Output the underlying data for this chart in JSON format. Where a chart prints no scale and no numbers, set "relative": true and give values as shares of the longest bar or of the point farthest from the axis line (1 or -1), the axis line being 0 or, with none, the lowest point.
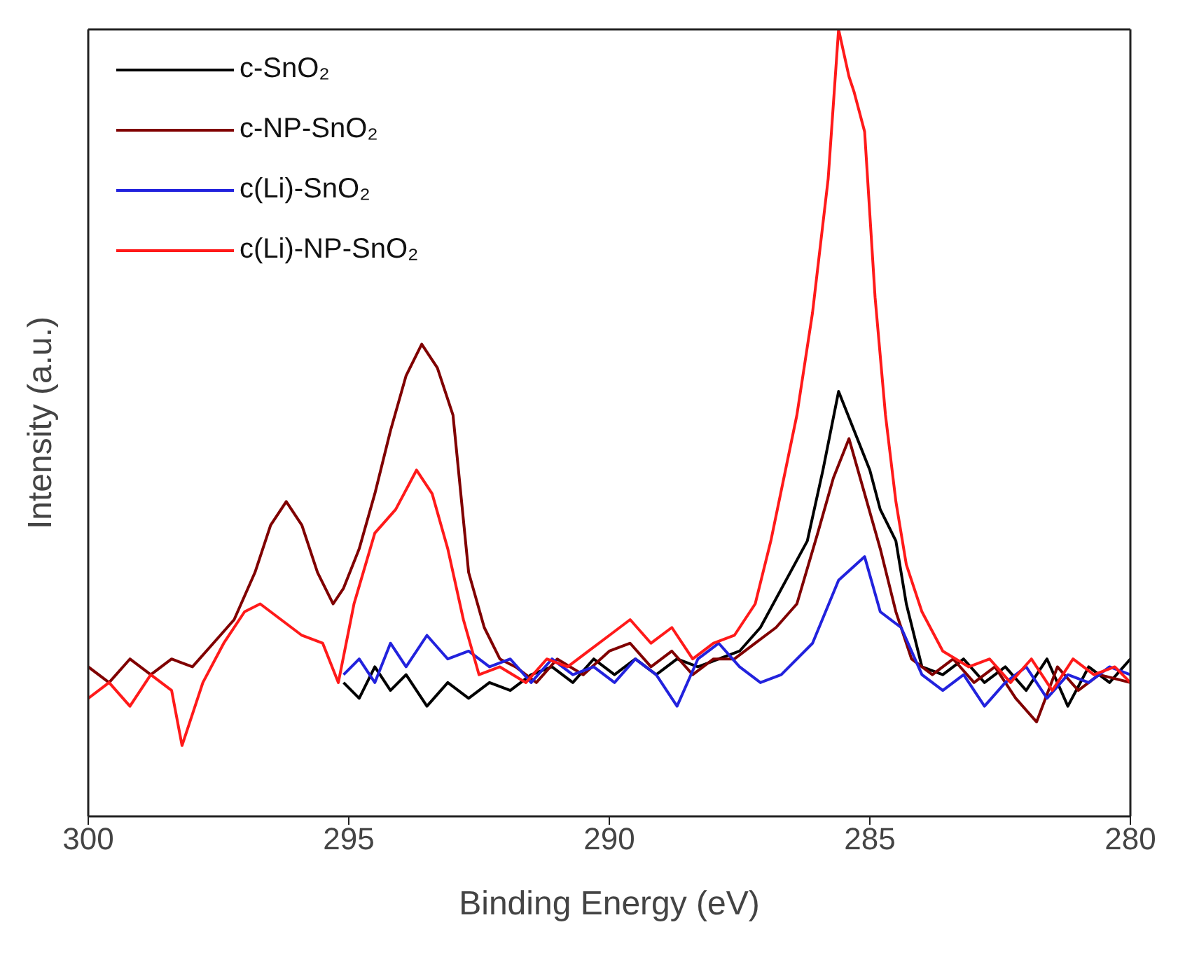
{
  "chart_data": {
    "type": "line",
    "xlabel": "Binding Energy (eV)",
    "ylabel": "Intensity (a.u.)",
    "relative": true,
    "xlim": [
      300,
      280
    ],
    "xticks": [
      300,
      295,
      290,
      285,
      280
    ],
    "legend": "top left",
    "marker": "none",
    "line_style": "solid",
    "series": [
      {
        "name": "c-SnO₂",
        "color": "#000000",
        "x": [
          295.1,
          294.8,
          294.5,
          294.2,
          293.9,
          293.5,
          293.1,
          292.7,
          292.3,
          291.9,
          291.5,
          291.1,
          290.7,
          290.3,
          289.9,
          289.5,
          289.1,
          288.7,
          288.3,
          287.9,
          287.5,
          287.1,
          286.2,
          285.9,
          285.6,
          285.3,
          285.0,
          284.8,
          284.5,
          284.3,
          284.0,
          283.6,
          283.2,
          282.8,
          282.4,
          282,
          281.6,
          281.2,
          280.8,
          280.4,
          280
        ],
        "values": [
          0.17,
          0.15,
          0.19,
          0.16,
          0.18,
          0.14,
          0.17,
          0.15,
          0.17,
          0.16,
          0.18,
          0.19,
          0.17,
          0.2,
          0.18,
          0.2,
          0.18,
          0.2,
          0.19,
          0.2,
          0.21,
          0.24,
          0.35,
          0.44,
          0.54,
          0.49,
          0.44,
          0.39,
          0.35,
          0.27,
          0.19,
          0.18,
          0.2,
          0.17,
          0.19,
          0.16,
          0.2,
          0.14,
          0.19,
          0.17,
          0.2
        ]
      },
      {
        "name": "c-NP-SnO₂",
        "color": "#800000",
        "x": [
          300,
          299.6,
          299.2,
          298.8,
          298.4,
          298,
          297.6,
          297.2,
          296.8,
          296.5,
          296.2,
          295.9,
          295.6,
          295.3,
          295.1,
          294.8,
          294.5,
          294.2,
          293.9,
          293.6,
          293.3,
          293.0,
          292.7,
          292.4,
          292.1,
          291.8,
          291.4,
          291,
          290.5,
          290,
          289.6,
          289.2,
          288.8,
          288.4,
          288,
          287.6,
          287.2,
          286.8,
          286.4,
          286,
          285.7,
          285.4,
          285.1,
          284.8,
          284.5,
          284.2,
          283.8,
          283.4,
          283,
          282.6,
          282.2,
          281.8,
          281.4,
          281,
          280.6,
          280
        ],
        "values": [
          0.19,
          0.17,
          0.2,
          0.18,
          0.2,
          0.19,
          0.22,
          0.25,
          0.31,
          0.37,
          0.4,
          0.37,
          0.31,
          0.27,
          0.29,
          0.34,
          0.41,
          0.49,
          0.56,
          0.6,
          0.57,
          0.51,
          0.31,
          0.24,
          0.2,
          0.19,
          0.17,
          0.2,
          0.18,
          0.21,
          0.22,
          0.19,
          0.21,
          0.18,
          0.2,
          0.2,
          0.22,
          0.24,
          0.27,
          0.36,
          0.43,
          0.48,
          0.41,
          0.34,
          0.26,
          0.2,
          0.18,
          0.2,
          0.17,
          0.19,
          0.15,
          0.12,
          0.19,
          0.16,
          0.18,
          0.17
        ]
      },
      {
        "name": "c(Li)-SnO₂",
        "color": "#2222dd",
        "x": [
          295.1,
          294.8,
          294.5,
          294.2,
          293.9,
          293.5,
          293.1,
          292.7,
          292.3,
          291.9,
          291.5,
          291.1,
          290.7,
          290.3,
          289.9,
          289.5,
          289.1,
          288.7,
          288.3,
          287.9,
          287.5,
          287.1,
          286.7,
          286.1,
          285.6,
          285.1,
          284.8,
          284.4,
          284.0,
          283.6,
          283.2,
          282.8,
          282.4,
          282,
          281.6,
          281.2,
          280.8,
          280.4,
          280
        ],
        "values": [
          0.18,
          0.2,
          0.17,
          0.22,
          0.19,
          0.23,
          0.2,
          0.21,
          0.19,
          0.2,
          0.17,
          0.2,
          0.18,
          0.19,
          0.17,
          0.2,
          0.18,
          0.14,
          0.2,
          0.22,
          0.19,
          0.17,
          0.18,
          0.22,
          0.3,
          0.33,
          0.26,
          0.24,
          0.18,
          0.16,
          0.18,
          0.14,
          0.17,
          0.19,
          0.15,
          0.18,
          0.17,
          0.19,
          0.18
        ]
      },
      {
        "name": "c(Li)-NP-SnO₂",
        "color": "#ff1a1a",
        "x": [
          300,
          299.6,
          299.2,
          298.8,
          298.4,
          298.2,
          297.8,
          297.4,
          297,
          296.7,
          296.3,
          295.9,
          295.5,
          295.2,
          294.9,
          294.5,
          294.1,
          293.7,
          293.4,
          293.1,
          292.8,
          292.5,
          292.1,
          291.6,
          291.2,
          290.8,
          290.4,
          290,
          289.6,
          289.2,
          288.8,
          288.4,
          288,
          287.6,
          287.2,
          286.9,
          286.4,
          286.1,
          285.8,
          285.6,
          285.4,
          285.3,
          285.1,
          284.9,
          284.7,
          284.5,
          284.3,
          284.0,
          283.6,
          283.1,
          282.7,
          282.3,
          281.9,
          281.5,
          281.1,
          280.7,
          280.3,
          280
        ],
        "values": [
          0.15,
          0.17,
          0.14,
          0.18,
          0.16,
          0.09,
          0.17,
          0.22,
          0.26,
          0.27,
          0.25,
          0.23,
          0.22,
          0.17,
          0.27,
          0.36,
          0.39,
          0.44,
          0.41,
          0.34,
          0.25,
          0.18,
          0.19,
          0.17,
          0.2,
          0.19,
          0.21,
          0.23,
          0.25,
          0.22,
          0.24,
          0.2,
          0.22,
          0.23,
          0.27,
          0.35,
          0.51,
          0.64,
          0.81,
          1.0,
          0.94,
          0.92,
          0.87,
          0.66,
          0.51,
          0.4,
          0.32,
          0.26,
          0.21,
          0.19,
          0.2,
          0.17,
          0.2,
          0.16,
          0.2,
          0.18,
          0.19,
          0.17
        ]
      }
    ]
  }
}
